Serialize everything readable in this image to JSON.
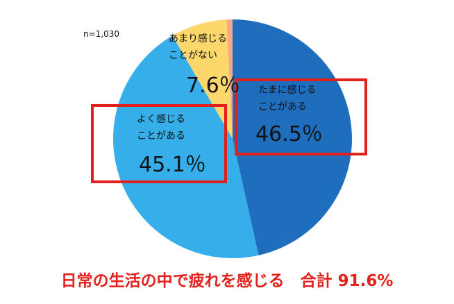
{
  "chart_data": {
    "type": "pie",
    "title": "日常の生活の中で疲れを感じる　合計 91.6%",
    "annotation": "n=1,030",
    "categories": [
      "たまに感じる\nことがある",
      "よく感じる\nことがある",
      "あまり感じる\nことがない",
      null
    ],
    "values": [
      46.5,
      45.1,
      7.6,
      0.8
    ],
    "value_labels": [
      "46.5％",
      "45.1％",
      "7.6％",
      null
    ],
    "colors": [
      "#1f6dbd",
      "#35aeea",
      "#fcd76b",
      "#f4a88a"
    ]
  }
}
